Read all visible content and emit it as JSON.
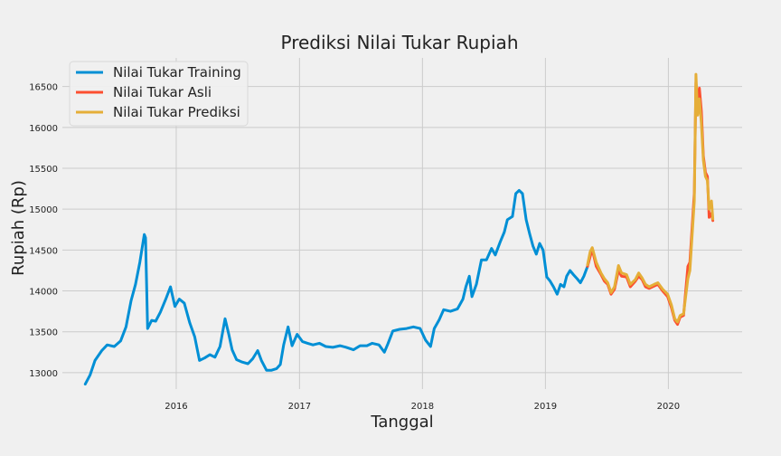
{
  "chart_data": {
    "type": "line",
    "title": "Prediksi Nilai Tukar Rupiah",
    "xlabel": "Tanggal",
    "ylabel": "Rupiah (Rp)",
    "x_range": [
      "2015-01-28",
      "2020-08-07"
    ],
    "ylim": [
      12800,
      16850
    ],
    "x_ticks": [
      {
        "date": "2016-01-01",
        "label": "2016"
      },
      {
        "date": "2017-01-01",
        "label": "2017"
      },
      {
        "date": "2018-01-01",
        "label": "2018"
      },
      {
        "date": "2019-01-01",
        "label": "2019"
      },
      {
        "date": "2020-01-01",
        "label": "2020"
      }
    ],
    "y_ticks": [
      13000,
      13500,
      14000,
      14500,
      15000,
      15500,
      16000,
      16500
    ],
    "grid": true,
    "legend_position": "top-left",
    "colors": {
      "background": "#f0f0f0",
      "grid": "#cbcbcb",
      "training": "#008fd5",
      "actual": "#fc4f30",
      "prediction": "#e5ae38"
    },
    "series": [
      {
        "name": "Nilai Tukar Training",
        "color": "#008fd5",
        "points": [
          [
            "2015-04-06",
            12860
          ],
          [
            "2015-04-20",
            12970
          ],
          [
            "2015-05-05",
            13150
          ],
          [
            "2015-05-25",
            13270
          ],
          [
            "2015-06-10",
            13340
          ],
          [
            "2015-07-01",
            13320
          ],
          [
            "2015-07-20",
            13390
          ],
          [
            "2015-08-05",
            13560
          ],
          [
            "2015-08-20",
            13880
          ],
          [
            "2015-09-02",
            14080
          ],
          [
            "2015-09-15",
            14350
          ],
          [
            "2015-09-28",
            14690
          ],
          [
            "2015-10-02",
            14650
          ],
          [
            "2015-10-08",
            13540
          ],
          [
            "2015-10-20",
            13640
          ],
          [
            "2015-11-01",
            13630
          ],
          [
            "2015-11-15",
            13740
          ],
          [
            "2015-12-01",
            13900
          ],
          [
            "2015-12-15",
            14050
          ],
          [
            "2015-12-28",
            13810
          ],
          [
            "2016-01-10",
            13900
          ],
          [
            "2016-01-25",
            13850
          ],
          [
            "2016-02-10",
            13610
          ],
          [
            "2016-02-25",
            13440
          ],
          [
            "2016-03-10",
            13150
          ],
          [
            "2016-03-25",
            13180
          ],
          [
            "2016-04-10",
            13220
          ],
          [
            "2016-04-25",
            13190
          ],
          [
            "2016-05-10",
            13320
          ],
          [
            "2016-05-25",
            13660
          ],
          [
            "2016-06-05",
            13470
          ],
          [
            "2016-06-15",
            13280
          ],
          [
            "2016-06-28",
            13160
          ],
          [
            "2016-07-15",
            13130
          ],
          [
            "2016-08-01",
            13110
          ],
          [
            "2016-08-15",
            13170
          ],
          [
            "2016-08-30",
            13270
          ],
          [
            "2016-09-10",
            13150
          ],
          [
            "2016-09-25",
            13030
          ],
          [
            "2016-10-10",
            13030
          ],
          [
            "2016-10-25",
            13050
          ],
          [
            "2016-11-05",
            13100
          ],
          [
            "2016-11-15",
            13340
          ],
          [
            "2016-11-28",
            13560
          ],
          [
            "2016-12-10",
            13330
          ],
          [
            "2016-12-25",
            13470
          ],
          [
            "2017-01-10",
            13380
          ],
          [
            "2017-01-25",
            13360
          ],
          [
            "2017-02-10",
            13340
          ],
          [
            "2017-03-01",
            13360
          ],
          [
            "2017-03-20",
            13320
          ],
          [
            "2017-04-10",
            13310
          ],
          [
            "2017-05-01",
            13330
          ],
          [
            "2017-05-20",
            13310
          ],
          [
            "2017-06-10",
            13280
          ],
          [
            "2017-06-30",
            13330
          ],
          [
            "2017-07-20",
            13330
          ],
          [
            "2017-08-05",
            13360
          ],
          [
            "2017-08-25",
            13340
          ],
          [
            "2017-09-10",
            13250
          ],
          [
            "2017-09-20",
            13350
          ],
          [
            "2017-10-05",
            13510
          ],
          [
            "2017-10-25",
            13530
          ],
          [
            "2017-11-15",
            13540
          ],
          [
            "2017-12-05",
            13560
          ],
          [
            "2017-12-25",
            13540
          ],
          [
            "2018-01-10",
            13400
          ],
          [
            "2018-01-25",
            13320
          ],
          [
            "2018-02-05",
            13540
          ],
          [
            "2018-02-20",
            13650
          ],
          [
            "2018-03-05",
            13770
          ],
          [
            "2018-03-25",
            13750
          ],
          [
            "2018-04-15",
            13780
          ],
          [
            "2018-05-01",
            13900
          ],
          [
            "2018-05-10",
            14050
          ],
          [
            "2018-05-20",
            14180
          ],
          [
            "2018-05-28",
            13930
          ],
          [
            "2018-06-10",
            14080
          ],
          [
            "2018-06-25",
            14380
          ],
          [
            "2018-07-10",
            14380
          ],
          [
            "2018-07-25",
            14520
          ],
          [
            "2018-08-05",
            14440
          ],
          [
            "2018-08-20",
            14600
          ],
          [
            "2018-09-01",
            14720
          ],
          [
            "2018-09-10",
            14870
          ],
          [
            "2018-09-25",
            14910
          ],
          [
            "2018-10-05",
            15190
          ],
          [
            "2018-10-15",
            15230
          ],
          [
            "2018-10-25",
            15190
          ],
          [
            "2018-11-05",
            14870
          ],
          [
            "2018-11-15",
            14700
          ],
          [
            "2018-11-25",
            14550
          ],
          [
            "2018-12-05",
            14450
          ],
          [
            "2018-12-15",
            14580
          ],
          [
            "2018-12-25",
            14500
          ],
          [
            "2019-01-05",
            14170
          ],
          [
            "2019-01-15",
            14120
          ],
          [
            "2019-01-25",
            14050
          ],
          [
            "2019-02-05",
            13960
          ],
          [
            "2019-02-15",
            14080
          ],
          [
            "2019-02-25",
            14050
          ],
          [
            "2019-03-05",
            14180
          ],
          [
            "2019-03-15",
            14250
          ],
          [
            "2019-03-25",
            14200
          ],
          [
            "2019-04-05",
            14150
          ],
          [
            "2019-04-15",
            14100
          ],
          [
            "2019-04-25",
            14180
          ],
          [
            "2019-05-06",
            14300
          ]
        ]
      },
      {
        "name": "Nilai Tukar Asli",
        "color": "#fc4f30",
        "points": [
          [
            "2019-05-06",
            14300
          ],
          [
            "2019-05-14",
            14420
          ],
          [
            "2019-05-20",
            14510
          ],
          [
            "2019-06-01",
            14300
          ],
          [
            "2019-06-15",
            14200
          ],
          [
            "2019-06-25",
            14120
          ],
          [
            "2019-07-05",
            14080
          ],
          [
            "2019-07-15",
            13960
          ],
          [
            "2019-07-25",
            14020
          ],
          [
            "2019-08-06",
            14250
          ],
          [
            "2019-08-15",
            14180
          ],
          [
            "2019-08-30",
            14170
          ],
          [
            "2019-09-10",
            14050
          ],
          [
            "2019-09-25",
            14120
          ],
          [
            "2019-10-05",
            14180
          ],
          [
            "2019-10-15",
            14140
          ],
          [
            "2019-10-25",
            14050
          ],
          [
            "2019-11-05",
            14030
          ],
          [
            "2019-11-20",
            14060
          ],
          [
            "2019-12-01",
            14080
          ],
          [
            "2019-12-15",
            14000
          ],
          [
            "2019-12-30",
            13930
          ],
          [
            "2020-01-10",
            13800
          ],
          [
            "2020-01-20",
            13640
          ],
          [
            "2020-01-28",
            13590
          ],
          [
            "2020-02-05",
            13680
          ],
          [
            "2020-02-15",
            13700
          ],
          [
            "2020-02-28",
            14300
          ],
          [
            "2020-03-05",
            14350
          ],
          [
            "2020-03-12",
            14800
          ],
          [
            "2020-03-18",
            15200
          ],
          [
            "2020-03-23",
            16550
          ],
          [
            "2020-03-28",
            16300
          ],
          [
            "2020-04-02",
            16480
          ],
          [
            "2020-04-08",
            16200
          ],
          [
            "2020-04-14",
            15650
          ],
          [
            "2020-04-20",
            15450
          ],
          [
            "2020-04-26",
            15400
          ],
          [
            "2020-05-01",
            14900
          ],
          [
            "2020-05-08",
            14950
          ],
          [
            "2020-05-12",
            14860
          ]
        ]
      },
      {
        "name": "Nilai Tukar Prediksi",
        "color": "#e5ae38",
        "points": [
          [
            "2019-05-06",
            14320
          ],
          [
            "2019-05-14",
            14480
          ],
          [
            "2019-05-20",
            14530
          ],
          [
            "2019-06-01",
            14350
          ],
          [
            "2019-06-15",
            14220
          ],
          [
            "2019-06-25",
            14150
          ],
          [
            "2019-07-05",
            14100
          ],
          [
            "2019-07-15",
            13980
          ],
          [
            "2019-07-25",
            14050
          ],
          [
            "2019-08-06",
            14310
          ],
          [
            "2019-08-15",
            14220
          ],
          [
            "2019-08-30",
            14200
          ],
          [
            "2019-09-10",
            14080
          ],
          [
            "2019-09-25",
            14140
          ],
          [
            "2019-10-05",
            14220
          ],
          [
            "2019-10-15",
            14160
          ],
          [
            "2019-10-25",
            14080
          ],
          [
            "2019-11-05",
            14050
          ],
          [
            "2019-11-20",
            14080
          ],
          [
            "2019-12-01",
            14100
          ],
          [
            "2019-12-15",
            14020
          ],
          [
            "2019-12-30",
            13960
          ],
          [
            "2020-01-10",
            13830
          ],
          [
            "2020-01-20",
            13660
          ],
          [
            "2020-01-28",
            13620
          ],
          [
            "2020-02-05",
            13700
          ],
          [
            "2020-02-15",
            13720
          ],
          [
            "2020-02-28",
            14150
          ],
          [
            "2020-03-05",
            14250
          ],
          [
            "2020-03-12",
            14700
          ],
          [
            "2020-03-18",
            15100
          ],
          [
            "2020-03-23",
            16650
          ],
          [
            "2020-03-28",
            16150
          ],
          [
            "2020-04-02",
            16350
          ],
          [
            "2020-04-08",
            16050
          ],
          [
            "2020-04-14",
            15600
          ],
          [
            "2020-04-20",
            15400
          ],
          [
            "2020-04-26",
            15350
          ],
          [
            "2020-05-01",
            15000
          ],
          [
            "2020-05-08",
            15100
          ],
          [
            "2020-05-12",
            14880
          ]
        ]
      }
    ]
  }
}
